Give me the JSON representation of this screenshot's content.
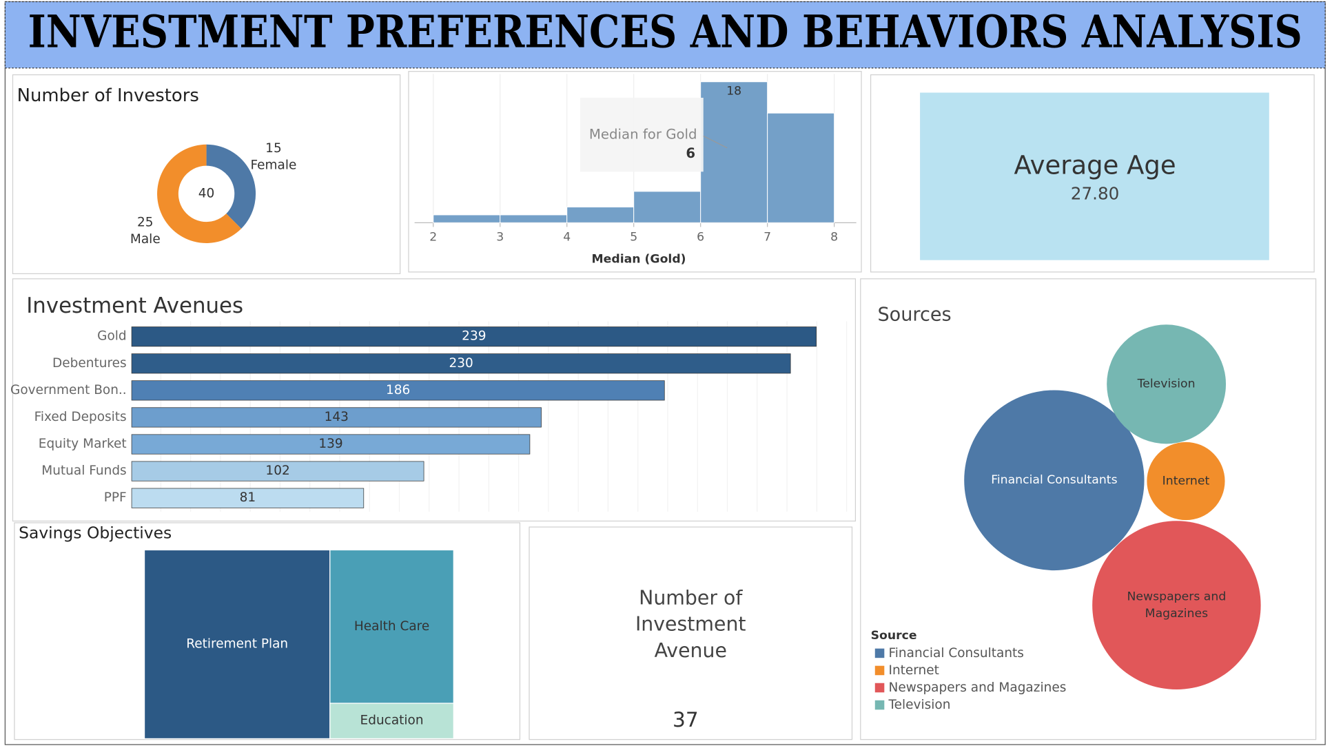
{
  "header": {
    "title": "INVESTMENT PREFERENCES AND BEHAVIORS ANALYSIS"
  },
  "chart_data": [
    {
      "type": "pie",
      "title": "Number of Investors",
      "categories": [
        "Female",
        "Male"
      ],
      "values": [
        15,
        25
      ],
      "colors": [
        "#4e79a7",
        "#f28e2b"
      ],
      "total": 40
    },
    {
      "type": "histogram",
      "x_label": "Median (Gold)",
      "bins": [
        2,
        3,
        4,
        5,
        6,
        7,
        8
      ],
      "values": [
        1,
        1,
        2,
        4,
        18,
        14
      ],
      "color": "#74a0c8",
      "xlim": [
        1.72,
        8.33
      ],
      "xticks": [
        2,
        3,
        4,
        5,
        6,
        7,
        8
      ],
      "ylim": [
        0,
        19
      ],
      "grid": true,
      "annotation": {
        "text": "Median for Gold",
        "value": 6
      }
    },
    {
      "type": "bar",
      "orientation": "horizontal",
      "title": "Investment Avenues",
      "categories": [
        "Gold",
        "Debentures",
        "Government Bon..",
        "Fixed Deposits",
        "Equity Market",
        "Mutual Funds",
        "PPF"
      ],
      "values": [
        239,
        230,
        186,
        143,
        139,
        102,
        81
      ],
      "colors": [
        "#2c5985",
        "#2f5d8a",
        "#4f80b4",
        "#6d9ecd",
        "#78a9d6",
        "#a6cbe6",
        "#bcdcf0"
      ],
      "xlim": [
        0,
        250
      ]
    },
    {
      "type": "treemap",
      "title": "Savings Objectives",
      "categories": [
        "Retirement Plan",
        "Health Care",
        "Education"
      ],
      "values": [
        24,
        13,
        3
      ],
      "colors": [
        "#2c5985",
        "#4a9fb6",
        "#b8e3d6"
      ]
    },
    {
      "type": "bubble",
      "title": "Sources",
      "legend_title": "Source",
      "categories": [
        "Financial Consultants",
        "Internet",
        "Newspapers and Magazines",
        "Television"
      ],
      "values": [
        16,
        3,
        14,
        7
      ],
      "colors": [
        "#4e79a7",
        "#f28e2b",
        "#e15759",
        "#76b7b2"
      ]
    }
  ],
  "kpis": [
    {
      "title": "Average Age",
      "value": 27.8,
      "value_label": "27.80"
    },
    {
      "title": "Number of Investment Avenue",
      "value": 37
    }
  ]
}
